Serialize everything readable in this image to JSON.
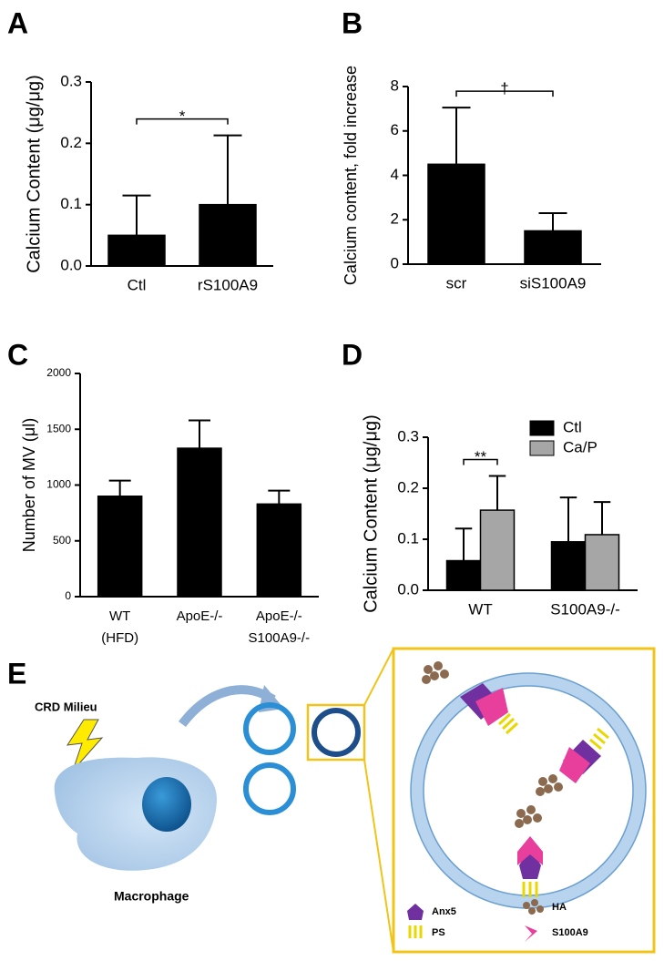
{
  "chart_data": [
    {
      "type": "bar",
      "panel": "A",
      "ylabel": "Calcium Content (μg/μg)",
      "categories": [
        "Ctl",
        "rS100A9"
      ],
      "values": [
        0.05,
        0.1
      ],
      "errors": [
        0.065,
        0.113
      ],
      "color": "#000000",
      "ylim": [
        0,
        0.3
      ],
      "yticks": [
        {
          "value": 0,
          "label": "0.0"
        },
        0.1,
        0.2,
        0.3
      ],
      "annotation": "*"
    },
    {
      "type": "bar",
      "panel": "B",
      "ylabel": "Calcium content, fold increase",
      "categories": [
        "scr",
        "siS100A9"
      ],
      "values": [
        4.5,
        1.5
      ],
      "errors": [
        2.55,
        0.8
      ],
      "color": "#000000",
      "ylim": [
        0,
        8
      ],
      "yticks": [
        0,
        2,
        4,
        6,
        8
      ],
      "annotation": "†"
    },
    {
      "type": "bar",
      "panel": "C",
      "ylabel": "Number of MV (μl)",
      "categories": [
        [
          "WT",
          "(HFD)"
        ],
        [
          "ApoE-/-"
        ],
        [
          "ApoE-/-",
          "S100A9-/-"
        ]
      ],
      "values": [
        900,
        1330,
        830
      ],
      "errors": [
        140,
        250,
        120
      ],
      "color": "#000000",
      "ylim": [
        0,
        2000
      ],
      "yticks": [
        0,
        500,
        1000,
        1500,
        2000
      ]
    },
    {
      "type": "grouped-bar",
      "panel": "D",
      "ylabel": "Calcium Content (μg/μg)",
      "categories": [
        "WT",
        "S100A9-/-"
      ],
      "series": [
        {
          "name": "Ctl",
          "color": "#000000",
          "values": [
            0.058,
            0.095
          ],
          "errors": [
            0.063,
            0.087
          ]
        },
        {
          "name": "Ca/P",
          "color": "#a6a6a6",
          "values": [
            0.157,
            0.109
          ],
          "errors": [
            0.067,
            0.064
          ]
        }
      ],
      "ylim": [
        0,
        0.3
      ],
      "yticks": [
        {
          "value": 0,
          "label": "0.0"
        },
        0.1,
        0.2,
        0.3
      ],
      "annotation": "**",
      "legend": "top-right"
    }
  ],
  "diagram": {
    "panel": "E",
    "stimulus": "CRD Milieu",
    "cell": "Macrophage",
    "legend": [
      "Anx5",
      "HA",
      "PS",
      "S100A9"
    ]
  }
}
